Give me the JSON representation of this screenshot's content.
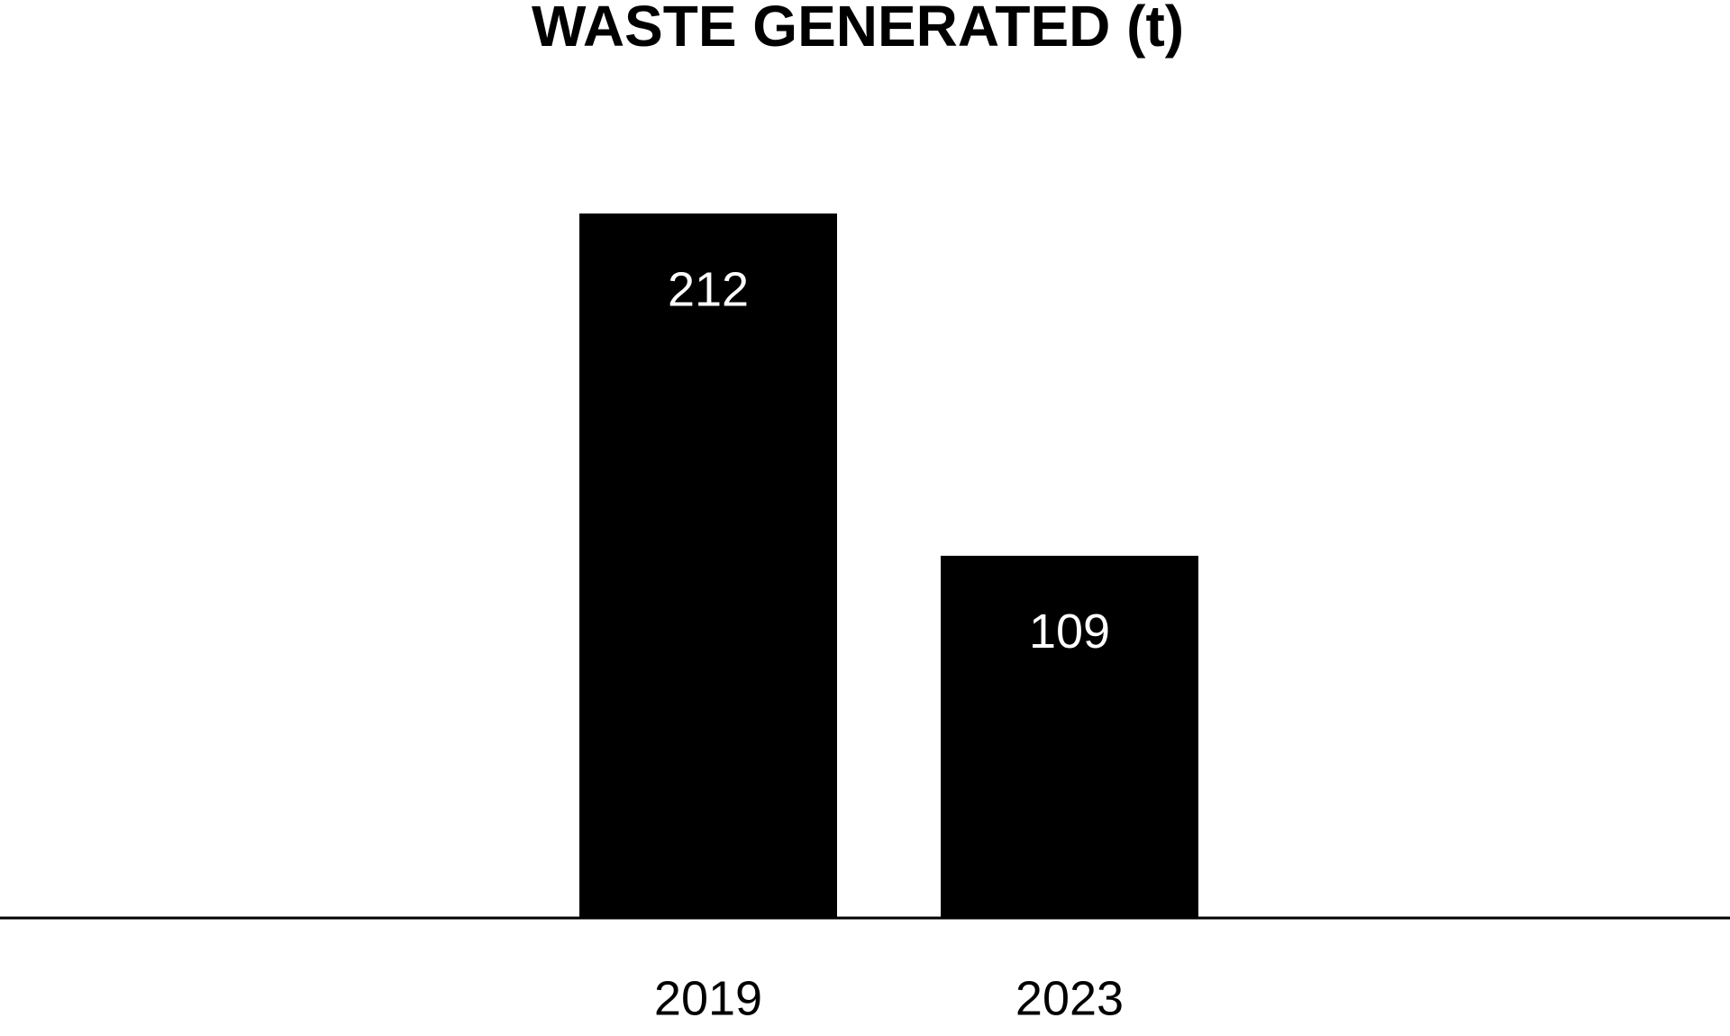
{
  "chart_data": {
    "type": "bar",
    "title": "WASTE GENERATED (t)",
    "categories": [
      "2019",
      "2023"
    ],
    "values": [
      212,
      109
    ],
    "color": "#000000"
  }
}
